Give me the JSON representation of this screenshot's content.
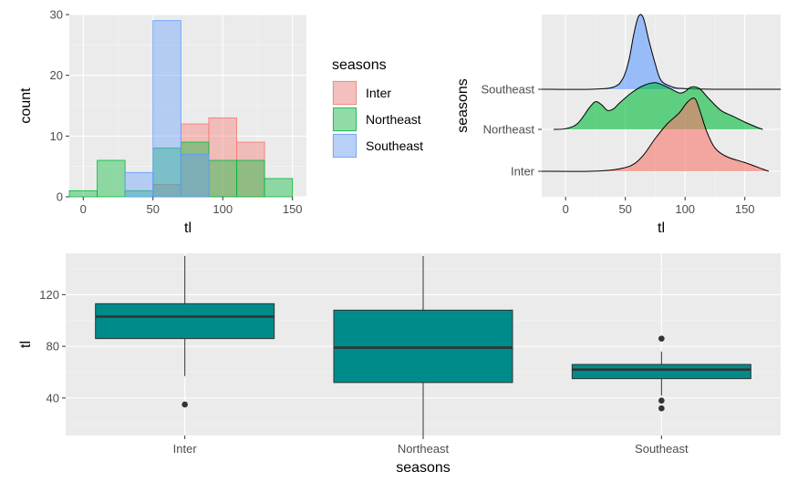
{
  "colors": {
    "inter": "#F8766D",
    "northeast": "#00BA38",
    "southeast": "#619CFF",
    "box_fill": "#008B8B",
    "panel_bg": "#EBEBEB"
  },
  "chart_data": [
    {
      "type": "bar",
      "subtype": "histogram",
      "xlabel": "tl",
      "ylabel": "count",
      "xlim": [
        -10,
        160
      ],
      "ylim": [
        0,
        30
      ],
      "xticks": [
        0,
        50,
        100,
        150
      ],
      "xtick_labels": [
        "0",
        "50",
        "100",
        "150"
      ],
      "yticks": [
        0,
        10,
        20,
        30
      ],
      "ytick_labels": [
        "0",
        "10",
        "20",
        "30"
      ],
      "bin_width": 20,
      "grid": true,
      "legend_placement": "right",
      "series": [
        {
          "name": "Inter",
          "bins": [
            [
              50,
              70,
              2
            ],
            [
              70,
              90,
              12
            ],
            [
              90,
              110,
              13
            ],
            [
              110,
              130,
              9
            ]
          ]
        },
        {
          "name": "Northeast",
          "bins": [
            [
              -10,
              10,
              1
            ],
            [
              10,
              30,
              6
            ],
            [
              30,
              50,
              1
            ],
            [
              50,
              70,
              8
            ],
            [
              70,
              90,
              9
            ],
            [
              90,
              110,
              6
            ],
            [
              110,
              130,
              6
            ],
            [
              130,
              150,
              3
            ]
          ]
        },
        {
          "name": "Southeast",
          "bins": [
            [
              30,
              50,
              4
            ],
            [
              50,
              70,
              29
            ],
            [
              70,
              90,
              7
            ]
          ]
        }
      ]
    },
    {
      "type": "area",
      "subtype": "ridgeline",
      "xlabel": "tl",
      "ylabel": "seasons",
      "xlim": [
        -20,
        180
      ],
      "xticks": [
        0,
        50,
        100,
        150
      ],
      "xtick_labels": [
        "0",
        "50",
        "100",
        "150"
      ],
      "categories": [
        "Inter",
        "Northeast",
        "Southeast"
      ],
      "grid": true,
      "series": [
        {
          "name": "Inter",
          "x": [
            -20,
            20,
            40,
            55,
            65,
            75,
            85,
            95,
            102,
            108,
            112,
            118,
            125,
            135,
            150,
            165,
            170
          ],
          "y": [
            0,
            0,
            0.02,
            0.08,
            0.22,
            0.45,
            0.65,
            0.8,
            0.95,
            1.0,
            0.85,
            0.55,
            0.32,
            0.2,
            0.12,
            0.03,
            0
          ]
        },
        {
          "name": "Northeast",
          "x": [
            -10,
            0,
            10,
            20,
            25,
            30,
            35,
            40,
            45,
            55,
            65,
            75,
            85,
            95,
            100,
            105,
            112,
            120,
            130,
            140,
            150,
            160,
            165
          ],
          "y": [
            0,
            0.01,
            0.08,
            0.3,
            0.38,
            0.34,
            0.26,
            0.28,
            0.36,
            0.5,
            0.6,
            0.64,
            0.58,
            0.5,
            0.52,
            0.58,
            0.56,
            0.42,
            0.26,
            0.18,
            0.1,
            0.03,
            0
          ]
        },
        {
          "name": "Southeast",
          "x": [
            -20,
            20,
            40,
            48,
            53,
            57,
            61,
            65,
            70,
            75,
            80,
            90,
            100,
            130,
            180
          ],
          "y": [
            0,
            0,
            0.03,
            0.15,
            0.4,
            0.75,
            1.0,
            0.98,
            0.65,
            0.35,
            0.12,
            0.03,
            0.01,
            0,
            0
          ]
        }
      ]
    },
    {
      "type": "box",
      "xlabel": "seasons",
      "ylabel": "tl",
      "ylim": [
        11,
        152
      ],
      "yticks": [
        40,
        80,
        120
      ],
      "ytick_labels": [
        "40",
        "80",
        "120"
      ],
      "categories": [
        "Inter",
        "Northeast",
        "Southeast"
      ],
      "grid": true,
      "boxes": [
        {
          "name": "Inter",
          "whisker_low": 57,
          "q1": 86,
          "median": 103,
          "q3": 113,
          "whisker_high": 150,
          "outliers": [
            35
          ]
        },
        {
          "name": "Northeast",
          "whisker_low": 10,
          "q1": 52,
          "median": 79,
          "q3": 108,
          "whisker_high": 150,
          "outliers": []
        },
        {
          "name": "Southeast",
          "whisker_low": 42,
          "q1": 55,
          "median": 62,
          "q3": 66,
          "whisker_high": 76,
          "outliers": [
            86,
            38,
            32
          ]
        }
      ]
    }
  ]
}
